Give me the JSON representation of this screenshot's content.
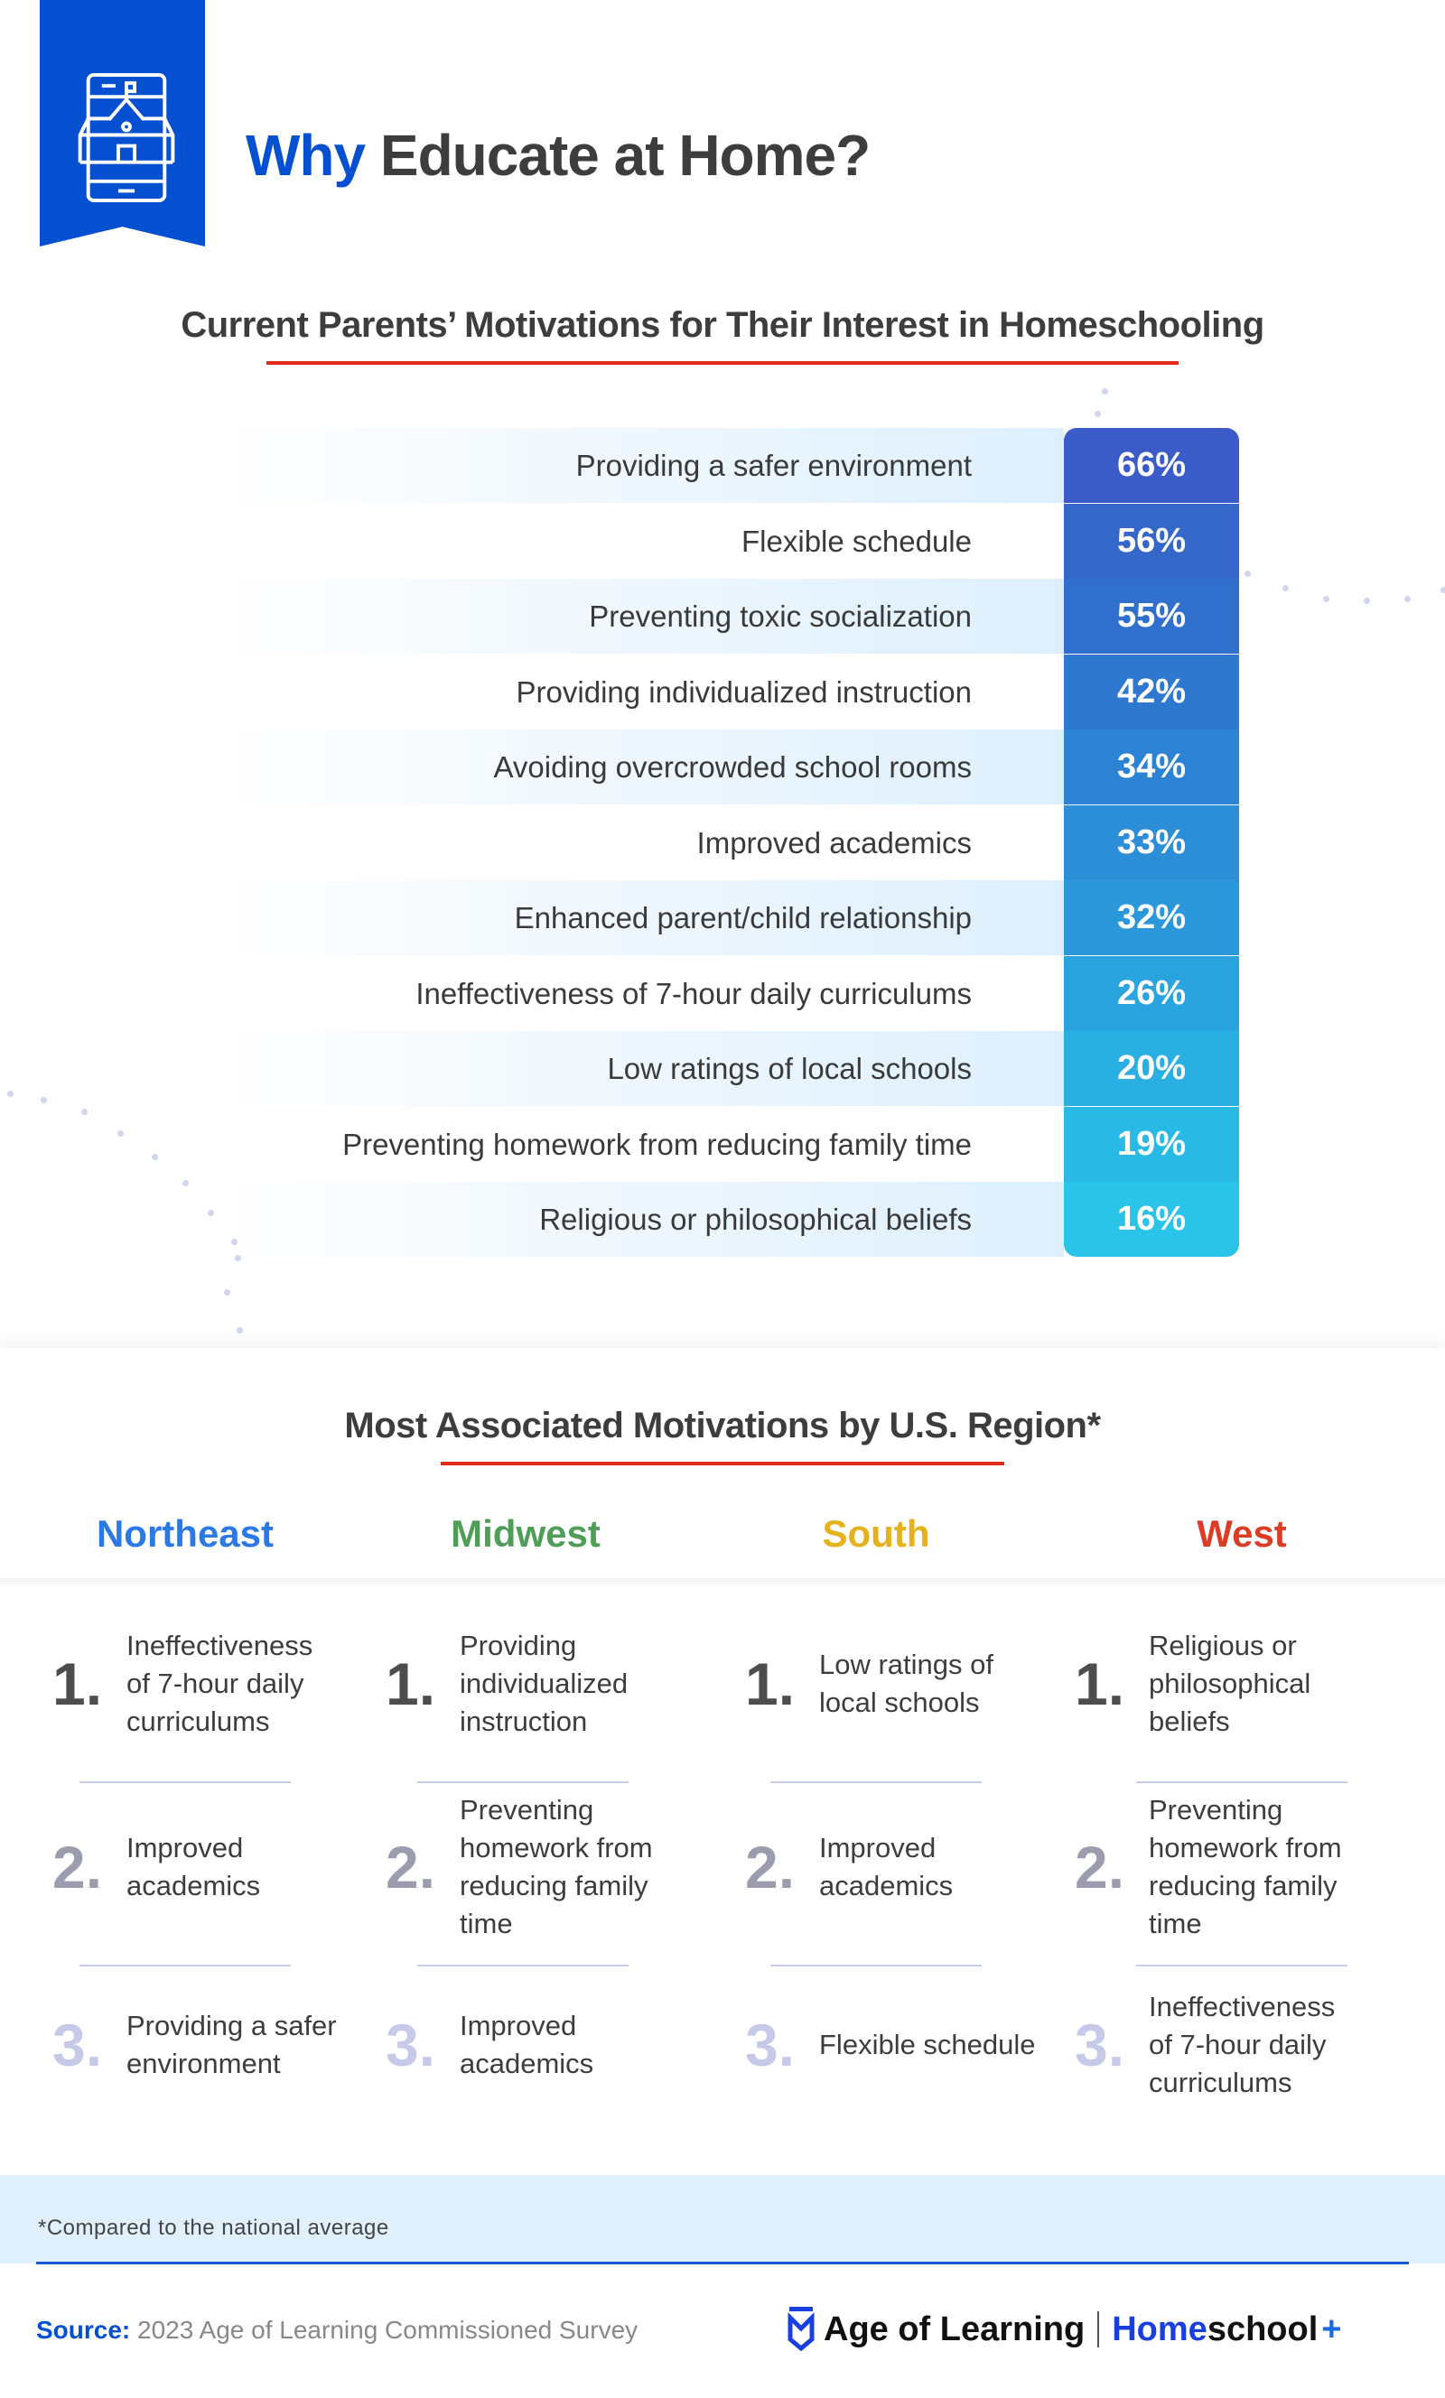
{
  "header": {
    "title_accent": "Why",
    "title_rest": "Educate at Home?",
    "icon": "school-on-tablet-icon"
  },
  "section1": {
    "title": "Current Parents’ Motivations for Their Interest in Homeschooling",
    "rows": [
      {
        "label": "Providing a safer environment",
        "value": "66%",
        "color": "#3a5bc8"
      },
      {
        "label": "Flexible schedule",
        "value": "56%",
        "color": "#3566c9"
      },
      {
        "label": "Preventing toxic socialization",
        "value": "55%",
        "color": "#316fcc"
      },
      {
        "label": "Providing individualized instruction",
        "value": "42%",
        "color": "#2e78cf"
      },
      {
        "label": "Avoiding overcrowded school rooms",
        "value": "34%",
        "color": "#2c83d3"
      },
      {
        "label": "Improved academics",
        "value": "33%",
        "color": "#2b8ed7"
      },
      {
        "label": "Enhanced parent/child relationship",
        "value": "32%",
        "color": "#2b98db"
      },
      {
        "label": "Ineffectiveness of 7-hour daily curriculums",
        "value": "26%",
        "color": "#2aa4de"
      },
      {
        "label": "Low ratings of local schools",
        "value": "20%",
        "color": "#29afe2"
      },
      {
        "label": "Preventing homework from reducing family time",
        "value": "19%",
        "color": "#29b9e5"
      },
      {
        "label": "Religious or philosophical beliefs",
        "value": "16%",
        "color": "#29c4e8"
      }
    ]
  },
  "section2": {
    "title": "Most Associated Motivations by U.S. Region*",
    "regions": [
      {
        "name": "Northeast",
        "color": "#2a79e6",
        "items": [
          "Ineffectiveness of 7-hour daily curriculums",
          "Improved academics",
          "Providing a safer environment"
        ]
      },
      {
        "name": "Midwest",
        "color": "#4e9e57",
        "items": [
          "Providing individualized instruction",
          "Preventing homework from reducing family time",
          "Improved academics"
        ]
      },
      {
        "name": "South",
        "color": "#e6b21c",
        "items": [
          "Low ratings of local schools",
          "Improved academics",
          "Flexible schedule"
        ]
      },
      {
        "name": "West",
        "color": "#dc3b24",
        "items": [
          "Religious or philosophical beliefs",
          "Preventing homework from reducing family time",
          "Ineffectiveness of 7-hour daily curriculums"
        ]
      }
    ],
    "ranks": [
      "1.",
      "2.",
      "3."
    ],
    "rank_colors": [
      "#4d4d4d",
      "#9b9cad",
      "#c6c9e8"
    ]
  },
  "footnote": "*Compared to the national average",
  "source": {
    "label": "Source:",
    "text": "2023 Age of Learning Commissioned Survey"
  },
  "logo": {
    "brand": "Age of Learning",
    "product_a": "Home",
    "product_b": "school",
    "plus": "+"
  }
}
